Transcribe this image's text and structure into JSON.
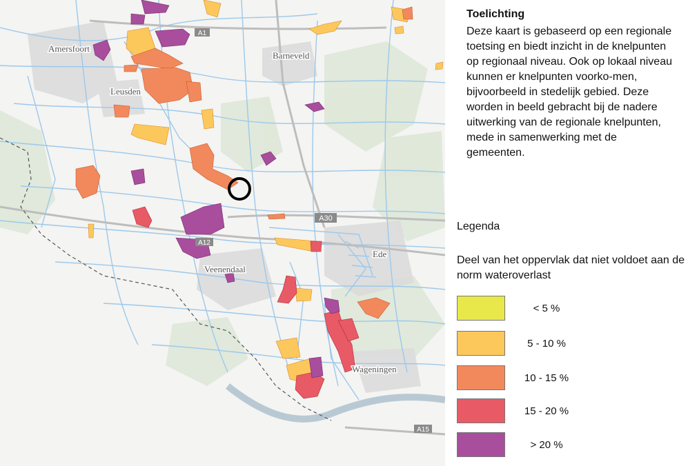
{
  "map": {
    "places": [
      {
        "name": "Amersfoort",
        "id": "amersfoort"
      },
      {
        "name": "Barneveld",
        "id": "barneveld"
      },
      {
        "name": "Leusden",
        "id": "leusden"
      },
      {
        "name": "Veenendaal",
        "id": "veenendaal"
      },
      {
        "name": "Ede",
        "id": "ede"
      },
      {
        "name": "Wageningen",
        "id": "wageningen"
      }
    ],
    "roads": [
      {
        "name": "A1",
        "id": "a1"
      },
      {
        "name": "A30",
        "id": "a30"
      },
      {
        "name": "A12",
        "id": "a12"
      },
      {
        "name": "A15",
        "id": "a15"
      }
    ],
    "colors": {
      "lt5": "#e8e84a",
      "5to10": "#fcc85c",
      "10to15": "#f2895c",
      "15to20": "#e85a66",
      "gt20": "#a84e9c",
      "water": "#9cc8ec",
      "land": "#f4f4f2",
      "urban": "#dcdcdc",
      "green": "#dbe6d4"
    }
  },
  "panel": {
    "title": "Toelichting",
    "text": "Deze kaart is gebaseerd op een regionale toetsing en biedt inzicht in de knelpunten op regionaal niveau. Ook op lokaal niveau kunnen er  knelpunten voorko-men, bijvoorbeeld in stedelijk gebied. Deze worden in beeld gebracht bij de nadere uitwerking van de regionale knelpunten, mede in samenwerking met de gemeenten.",
    "legend_title": "Legenda",
    "legend_subtitle": "Deel van het oppervlak dat niet voldoet aan de norm wateroverlast",
    "legend_items": [
      {
        "label": "< 5 %",
        "color": "#e8e84a"
      },
      {
        "label": "5 - 10 %",
        "color": "#fcc85c"
      },
      {
        "label": "10 - 15 %",
        "color": "#f2895c"
      },
      {
        "label": "15 - 20 %",
        "color": "#e85a66"
      },
      {
        "label": "> 20 %",
        "color": "#a84e9c"
      }
    ]
  }
}
